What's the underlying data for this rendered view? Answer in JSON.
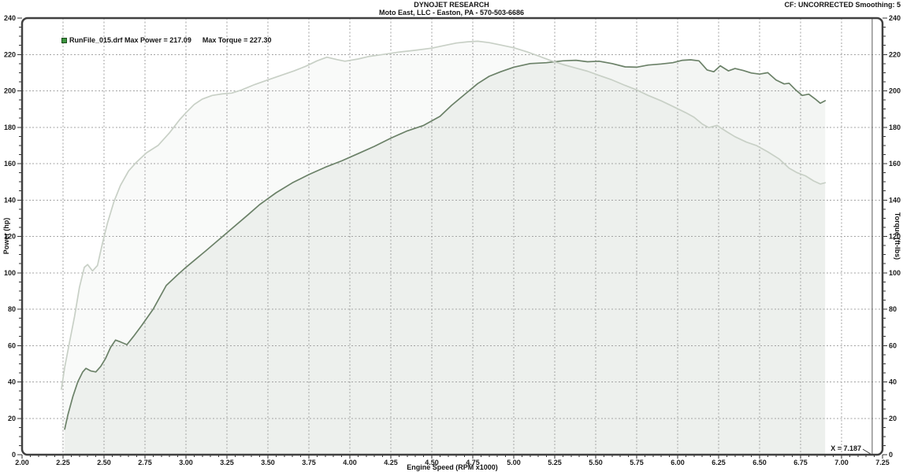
{
  "header": {
    "title": "DYNOJET RESEARCH",
    "subtitle": "Moto East, LLC - Easton, PA - 570-503-6686",
    "correction": "CF: UNCORRECTED  Smoothing: 5"
  },
  "chart_data": {
    "type": "line",
    "title": "DYNOJET RESEARCH",
    "subtitle": "Moto East, LLC - Easton, PA - 570-503-6686",
    "correction_note": "CF: UNCORRECTED  Smoothing: 5",
    "xlabel": "Engine Speed (RPM x1000)",
    "ylabel_left": "Power (hp)",
    "ylabel_right": "Torque (ft-lbs)",
    "xlim": [
      2.0,
      7.25
    ],
    "ylim": [
      0,
      240
    ],
    "x_major": 0.25,
    "x_minor": 0.05,
    "y_major": 20,
    "y_minor": 5,
    "grid": "dashed",
    "legend": {
      "position": "top-left",
      "swatch_color": "#3c9640",
      "run_file": "RunFile_015.drf",
      "max_power": 217.09,
      "max_torque": 227.3,
      "run_label": "RunFile_015.drf Max Power = 217.09",
      "torque_label": "Max Torque = 227.30"
    },
    "cursor": {
      "x": 7.187,
      "label": "X = 7.187"
    },
    "colors": {
      "power": "#6b8168",
      "torque": "#c8d0c6",
      "grid": "#a3a3a3",
      "border": "#404040"
    },
    "series": [
      {
        "name": "Power (hp)",
        "axis": "left",
        "color": "#6b8168",
        "points": [
          [
            2.26,
            14
          ],
          [
            2.28,
            22
          ],
          [
            2.31,
            32
          ],
          [
            2.34,
            40
          ],
          [
            2.37,
            45.5
          ],
          [
            2.39,
            47.5
          ],
          [
            2.42,
            46
          ],
          [
            2.45,
            45.5
          ],
          [
            2.48,
            48.5
          ],
          [
            2.51,
            53
          ],
          [
            2.54,
            59
          ],
          [
            2.57,
            63
          ],
          [
            2.6,
            62
          ],
          [
            2.64,
            60.5
          ],
          [
            2.68,
            65
          ],
          [
            2.73,
            71
          ],
          [
            2.8,
            80
          ],
          [
            2.88,
            93
          ],
          [
            2.95,
            99
          ],
          [
            3.0,
            103
          ],
          [
            3.12,
            112
          ],
          [
            3.25,
            122
          ],
          [
            3.38,
            132
          ],
          [
            3.45,
            137.5
          ],
          [
            3.55,
            144
          ],
          [
            3.65,
            149.5
          ],
          [
            3.75,
            154
          ],
          [
            3.85,
            158
          ],
          [
            3.95,
            161.5
          ],
          [
            4.05,
            165.5
          ],
          [
            4.15,
            169.5
          ],
          [
            4.25,
            174
          ],
          [
            4.35,
            178
          ],
          [
            4.45,
            181
          ],
          [
            4.55,
            186
          ],
          [
            4.62,
            192
          ],
          [
            4.7,
            198
          ],
          [
            4.78,
            204
          ],
          [
            4.85,
            208
          ],
          [
            4.92,
            210.5
          ],
          [
            5.0,
            213
          ],
          [
            5.1,
            215
          ],
          [
            5.2,
            215.5
          ],
          [
            5.3,
            216.5
          ],
          [
            5.38,
            216.8
          ],
          [
            5.45,
            216
          ],
          [
            5.52,
            216.3
          ],
          [
            5.6,
            215
          ],
          [
            5.68,
            213.2
          ],
          [
            5.75,
            213
          ],
          [
            5.82,
            214.2
          ],
          [
            5.9,
            214.8
          ],
          [
            5.97,
            215.5
          ],
          [
            6.03,
            216.8
          ],
          [
            6.08,
            217.1
          ],
          [
            6.13,
            216.5
          ],
          [
            6.18,
            211.5
          ],
          [
            6.22,
            210.5
          ],
          [
            6.26,
            213.8
          ],
          [
            6.31,
            211
          ],
          [
            6.35,
            212.3
          ],
          [
            6.4,
            211.2
          ],
          [
            6.45,
            209.8
          ],
          [
            6.5,
            209.2
          ],
          [
            6.55,
            210
          ],
          [
            6.6,
            206
          ],
          [
            6.65,
            203.8
          ],
          [
            6.68,
            204.2
          ],
          [
            6.72,
            200.5
          ],
          [
            6.76,
            197.5
          ],
          [
            6.8,
            198.2
          ],
          [
            6.84,
            195.5
          ],
          [
            6.87,
            193.2
          ],
          [
            6.9,
            194.6
          ]
        ]
      },
      {
        "name": "Torque (ft-lbs)",
        "axis": "right",
        "color": "#c8d0c6",
        "points": [
          [
            2.24,
            36
          ],
          [
            2.26,
            48
          ],
          [
            2.29,
            62
          ],
          [
            2.32,
            76
          ],
          [
            2.35,
            92
          ],
          [
            2.38,
            103
          ],
          [
            2.4,
            104.5
          ],
          [
            2.43,
            101
          ],
          [
            2.46,
            104
          ],
          [
            2.49,
            116
          ],
          [
            2.52,
            127
          ],
          [
            2.56,
            139
          ],
          [
            2.6,
            148
          ],
          [
            2.65,
            156
          ],
          [
            2.7,
            161
          ],
          [
            2.76,
            166
          ],
          [
            2.83,
            170
          ],
          [
            2.9,
            177
          ],
          [
            2.96,
            184
          ],
          [
            3.0,
            188
          ],
          [
            3.05,
            192.5
          ],
          [
            3.1,
            195.5
          ],
          [
            3.16,
            197.5
          ],
          [
            3.22,
            198.3
          ],
          [
            3.28,
            198.8
          ],
          [
            3.34,
            200.5
          ],
          [
            3.42,
            203.5
          ],
          [
            3.5,
            206
          ],
          [
            3.58,
            208.5
          ],
          [
            3.66,
            211
          ],
          [
            3.73,
            213.5
          ],
          [
            3.8,
            216.5
          ],
          [
            3.86,
            218.5
          ],
          [
            3.92,
            217.2
          ],
          [
            3.97,
            216.3
          ],
          [
            4.05,
            217.5
          ],
          [
            4.12,
            219
          ],
          [
            4.2,
            220
          ],
          [
            4.3,
            221.3
          ],
          [
            4.4,
            222.3
          ],
          [
            4.5,
            223.5
          ],
          [
            4.58,
            225
          ],
          [
            4.65,
            226.3
          ],
          [
            4.72,
            227
          ],
          [
            4.78,
            227.3
          ],
          [
            4.85,
            226.5
          ],
          [
            4.92,
            225.2
          ],
          [
            5.0,
            223.7
          ],
          [
            5.08,
            221.5
          ],
          [
            5.15,
            219.2
          ],
          [
            5.23,
            216.5
          ],
          [
            5.3,
            214.5
          ],
          [
            5.38,
            212.5
          ],
          [
            5.45,
            210.8
          ],
          [
            5.52,
            208.5
          ],
          [
            5.6,
            206
          ],
          [
            5.68,
            203
          ],
          [
            5.75,
            200.5
          ],
          [
            5.82,
            197.5
          ],
          [
            5.9,
            194.5
          ],
          [
            5.97,
            191.5
          ],
          [
            6.05,
            188
          ],
          [
            6.1,
            185.5
          ],
          [
            6.15,
            181.8
          ],
          [
            6.19,
            179.8
          ],
          [
            6.24,
            181
          ],
          [
            6.3,
            177.5
          ],
          [
            6.35,
            174.8
          ],
          [
            6.42,
            171.8
          ],
          [
            6.48,
            170
          ],
          [
            6.55,
            166.5
          ],
          [
            6.62,
            162.5
          ],
          [
            6.68,
            157.5
          ],
          [
            6.73,
            155
          ],
          [
            6.78,
            153.3
          ],
          [
            6.83,
            150.5
          ],
          [
            6.87,
            148.8
          ],
          [
            6.9,
            149.5
          ]
        ]
      }
    ]
  }
}
